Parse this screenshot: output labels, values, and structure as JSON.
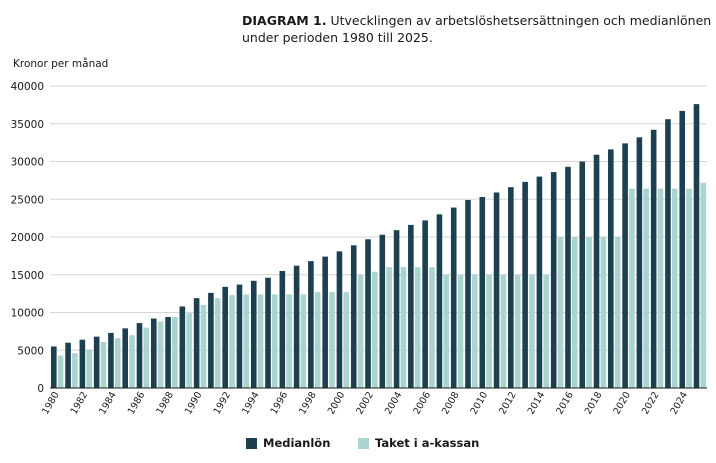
{
  "title_bold": "DIAGRAM 1.",
  "title_rest": " Utvecklingen av arbetslöshetsersättningen och medianlönen under perioden 1980 till 2025.",
  "colors": {
    "median": "#1d4050",
    "tak": "#a9d4cf",
    "grid": "#d6d6d6",
    "axis": "#1a1a1a"
  },
  "chart_data": {
    "type": "bar",
    "ylabel": "Kronor per månad",
    "xlabel": "",
    "ylim": [
      0,
      40000
    ],
    "yticks": [
      0,
      5000,
      10000,
      15000,
      20000,
      25000,
      30000,
      35000,
      40000
    ],
    "yticklabels": [
      "0",
      "5000",
      "10000",
      "15000",
      "20000",
      "25000",
      "30000",
      "35000",
      "40000"
    ],
    "grid": "horizontal",
    "legend": "bottom-center",
    "categories": [
      "1980",
      "1981",
      "1982",
      "1983",
      "1984",
      "1985",
      "1986",
      "1987",
      "1988",
      "1989",
      "1990",
      "1991",
      "1992",
      "1993",
      "1994",
      "1995",
      "1996",
      "1997",
      "1998",
      "1999",
      "2000",
      "2001",
      "2002",
      "2003",
      "2004",
      "2005",
      "2006",
      "2007",
      "2008",
      "2009",
      "2010",
      "2011",
      "2012",
      "2013",
      "2014",
      "2015",
      "2016",
      "2017",
      "2018",
      "2019",
      "2020",
      "2021",
      "2022",
      "2023",
      "2024",
      "2025"
    ],
    "xticklabels": [
      "1980",
      "",
      "1982",
      "",
      "1984",
      "",
      "1986",
      "",
      "1988",
      "",
      "1990",
      "",
      "1992",
      "",
      "1994",
      "",
      "1996",
      "",
      "1998",
      "",
      "2000",
      "",
      "2002",
      "",
      "2004",
      "",
      "2006",
      "",
      "2008",
      "",
      "2010",
      "",
      "2012",
      "",
      "2014",
      "",
      "2016",
      "",
      "2018",
      "",
      "2020",
      "",
      "2022",
      "",
      "2024",
      ""
    ],
    "series": [
      {
        "name": "Medianlön",
        "values": [
          5500,
          6000,
          6400,
          6800,
          7300,
          7900,
          8600,
          9200,
          9400,
          10800,
          11900,
          12600,
          13400,
          13700,
          14200,
          14600,
          15500,
          16200,
          16800,
          17400,
          18100,
          18900,
          19700,
          20300,
          20900,
          21600,
          22200,
          23000,
          23900,
          24900,
          25300,
          25900,
          26600,
          27300,
          28000,
          28600,
          29300,
          30000,
          30900,
          31600,
          32400,
          33200,
          34200,
          35600,
          36700,
          37600
        ]
      },
      {
        "name": "Taket i a-kassan",
        "values": [
          4300,
          4600,
          5100,
          6100,
          6600,
          7000,
          8000,
          8800,
          9400,
          9900,
          11000,
          11900,
          12300,
          12400,
          12400,
          12400,
          12400,
          12400,
          12700,
          12700,
          12700,
          15000,
          15400,
          16000,
          16000,
          16000,
          16000,
          15000,
          15000,
          15000,
          15000,
          15000,
          15000,
          15000,
          15000,
          20000,
          20000,
          20000,
          20000,
          20000,
          26400,
          26400,
          26400,
          26400,
          26400,
          27200
        ]
      }
    ]
  }
}
